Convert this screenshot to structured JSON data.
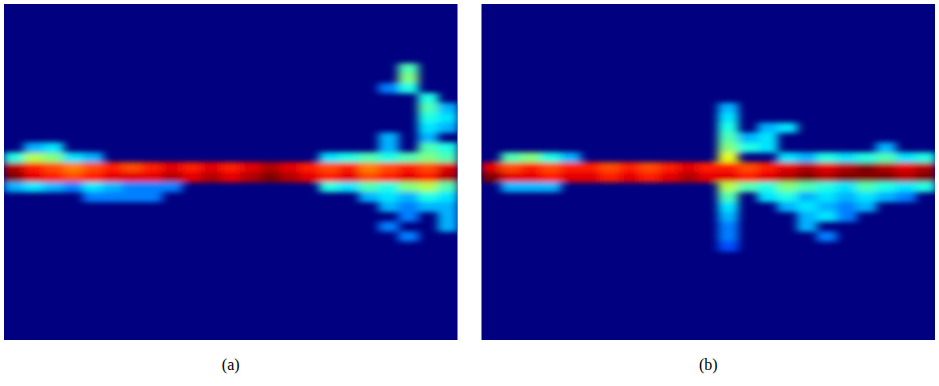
{
  "chart_data": [
    {
      "type": "heatmap",
      "title": "(a)",
      "rows": 34,
      "cols": 23,
      "color_range": [
        0,
        1
      ],
      "tick_labels": false,
      "cells": [
        [
          16,
          0,
          0.95
        ],
        [
          16,
          1,
          0.85
        ],
        [
          16,
          2,
          0.8
        ],
        [
          16,
          3,
          0.75
        ],
        [
          16,
          4,
          0.8
        ],
        [
          16,
          5,
          0.85
        ],
        [
          16,
          6,
          0.8
        ],
        [
          16,
          7,
          0.85
        ],
        [
          16,
          8,
          0.9
        ],
        [
          16,
          9,
          0.85
        ],
        [
          16,
          10,
          0.9
        ],
        [
          16,
          11,
          0.85
        ],
        [
          16,
          12,
          0.9
        ],
        [
          16,
          13,
          0.95
        ],
        [
          16,
          14,
          0.9
        ],
        [
          16,
          15,
          0.85
        ],
        [
          16,
          16,
          0.8
        ],
        [
          16,
          17,
          0.85
        ],
        [
          16,
          18,
          0.75
        ],
        [
          16,
          19,
          0.8
        ],
        [
          16,
          20,
          0.85
        ],
        [
          16,
          21,
          0.8
        ],
        [
          16,
          22,
          0.9
        ],
        [
          17,
          0,
          1.0
        ],
        [
          17,
          1,
          0.9
        ],
        [
          17,
          2,
          0.85
        ],
        [
          17,
          3,
          0.8
        ],
        [
          17,
          4,
          0.85
        ],
        [
          17,
          5,
          0.9
        ],
        [
          17,
          6,
          0.9
        ],
        [
          17,
          7,
          0.9
        ],
        [
          17,
          8,
          0.95
        ],
        [
          17,
          9,
          0.9
        ],
        [
          17,
          10,
          0.95
        ],
        [
          17,
          11,
          0.9
        ],
        [
          17,
          12,
          0.95
        ],
        [
          17,
          13,
          1.0
        ],
        [
          17,
          14,
          0.95
        ],
        [
          17,
          15,
          0.9
        ],
        [
          17,
          16,
          0.85
        ],
        [
          17,
          17,
          0.9
        ],
        [
          17,
          18,
          0.8
        ],
        [
          17,
          19,
          0.85
        ],
        [
          17,
          20,
          0.9
        ],
        [
          17,
          21,
          0.85
        ],
        [
          17,
          22,
          0.95
        ],
        [
          15,
          0,
          0.4
        ],
        [
          15,
          1,
          0.55
        ],
        [
          15,
          2,
          0.5
        ],
        [
          15,
          3,
          0.35
        ],
        [
          15,
          4,
          0.3
        ],
        [
          15,
          16,
          0.35
        ],
        [
          15,
          17,
          0.4
        ],
        [
          15,
          18,
          0.45
        ],
        [
          15,
          19,
          0.4
        ],
        [
          15,
          20,
          0.45
        ],
        [
          15,
          21,
          0.5
        ],
        [
          15,
          22,
          0.45
        ],
        [
          14,
          1,
          0.3
        ],
        [
          14,
          2,
          0.35
        ],
        [
          14,
          21,
          0.45
        ],
        [
          14,
          22,
          0.4
        ],
        [
          18,
          0,
          0.3
        ],
        [
          18,
          1,
          0.35
        ],
        [
          18,
          2,
          0.3
        ],
        [
          18,
          3,
          0.25
        ],
        [
          18,
          4,
          0.35
        ],
        [
          18,
          5,
          0.3
        ],
        [
          18,
          6,
          0.25
        ],
        [
          18,
          7,
          0.25
        ],
        [
          18,
          8,
          0.25
        ],
        [
          18,
          16,
          0.4
        ],
        [
          18,
          17,
          0.35
        ],
        [
          18,
          18,
          0.45
        ],
        [
          18,
          19,
          0.4
        ],
        [
          18,
          20,
          0.5
        ],
        [
          18,
          21,
          0.55
        ],
        [
          18,
          22,
          0.45
        ],
        [
          19,
          4,
          0.25
        ],
        [
          19,
          5,
          0.25
        ],
        [
          19,
          6,
          0.25
        ],
        [
          19,
          7,
          0.25
        ],
        [
          19,
          18,
          0.3
        ],
        [
          19,
          19,
          0.35
        ],
        [
          19,
          20,
          0.3
        ],
        [
          19,
          21,
          0.4
        ],
        [
          19,
          22,
          0.35
        ],
        [
          20,
          19,
          0.3
        ],
        [
          20,
          20,
          0.25
        ],
        [
          20,
          21,
          0.3
        ],
        [
          20,
          22,
          0.3
        ],
        [
          21,
          20,
          0.25
        ],
        [
          21,
          22,
          0.3
        ],
        [
          22,
          19,
          0.25
        ],
        [
          22,
          22,
          0.3
        ],
        [
          23,
          20,
          0.25
        ],
        [
          6,
          20,
          0.45
        ],
        [
          7,
          20,
          0.5
        ],
        [
          8,
          20,
          0.4
        ],
        [
          8,
          19,
          0.25
        ],
        [
          9,
          21,
          0.4
        ],
        [
          10,
          21,
          0.45
        ],
        [
          11,
          21,
          0.4
        ],
        [
          12,
          21,
          0.35
        ],
        [
          13,
          21,
          0.3
        ],
        [
          10,
          22,
          0.3
        ],
        [
          11,
          22,
          0.35
        ],
        [
          12,
          22,
          0.3
        ],
        [
          13,
          19,
          0.3
        ],
        [
          14,
          19,
          0.3
        ]
      ]
    },
    {
      "type": "heatmap",
      "title": "(b)",
      "rows": 34,
      "cols": 23,
      "color_range": [
        0,
        1
      ],
      "tick_labels": false,
      "cells": [
        [
          16,
          0,
          0.9
        ],
        [
          16,
          1,
          0.8
        ],
        [
          16,
          2,
          0.85
        ],
        [
          16,
          3,
          0.8
        ],
        [
          16,
          4,
          0.85
        ],
        [
          16,
          5,
          0.85
        ],
        [
          16,
          6,
          0.8
        ],
        [
          16,
          7,
          0.85
        ],
        [
          16,
          8,
          0.8
        ],
        [
          16,
          9,
          0.85
        ],
        [
          16,
          10,
          0.9
        ],
        [
          16,
          11,
          0.85
        ],
        [
          16,
          12,
          0.85
        ],
        [
          16,
          13,
          0.8
        ],
        [
          16,
          14,
          0.85
        ],
        [
          16,
          15,
          0.9
        ],
        [
          16,
          16,
          0.95
        ],
        [
          16,
          17,
          0.9
        ],
        [
          16,
          18,
          0.95
        ],
        [
          16,
          19,
          1.0
        ],
        [
          16,
          20,
          0.95
        ],
        [
          16,
          21,
          0.9
        ],
        [
          16,
          22,
          0.95
        ],
        [
          17,
          0,
          1.0
        ],
        [
          17,
          1,
          0.9
        ],
        [
          17,
          2,
          0.9
        ],
        [
          17,
          3,
          0.85
        ],
        [
          17,
          4,
          0.9
        ],
        [
          17,
          5,
          0.9
        ],
        [
          17,
          6,
          0.85
        ],
        [
          17,
          7,
          0.9
        ],
        [
          17,
          8,
          0.85
        ],
        [
          17,
          9,
          0.9
        ],
        [
          17,
          10,
          0.95
        ],
        [
          17,
          11,
          0.9
        ],
        [
          17,
          12,
          0.9
        ],
        [
          17,
          13,
          0.85
        ],
        [
          17,
          14,
          0.9
        ],
        [
          17,
          15,
          0.95
        ],
        [
          17,
          16,
          1.0
        ],
        [
          17,
          17,
          0.95
        ],
        [
          17,
          18,
          1.0
        ],
        [
          17,
          19,
          1.0
        ],
        [
          17,
          20,
          1.0
        ],
        [
          17,
          21,
          0.95
        ],
        [
          17,
          22,
          1.0
        ],
        [
          10,
          12,
          0.3
        ],
        [
          11,
          12,
          0.35
        ],
        [
          12,
          12,
          0.4
        ],
        [
          13,
          12,
          0.45
        ],
        [
          14,
          12,
          0.5
        ],
        [
          15,
          12,
          0.6
        ],
        [
          18,
          12,
          0.55
        ],
        [
          19,
          12,
          0.45
        ],
        [
          20,
          12,
          0.35
        ],
        [
          21,
          12,
          0.3
        ],
        [
          22,
          12,
          0.25
        ],
        [
          23,
          12,
          0.25
        ],
        [
          24,
          12,
          0.2
        ],
        [
          12,
          14,
          0.3
        ],
        [
          12,
          15,
          0.35
        ],
        [
          13,
          14,
          0.35
        ],
        [
          13,
          13,
          0.3
        ],
        [
          14,
          13,
          0.4
        ],
        [
          14,
          14,
          0.35
        ],
        [
          15,
          1,
          0.45
        ],
        [
          15,
          2,
          0.5
        ],
        [
          15,
          3,
          0.4
        ],
        [
          15,
          4,
          0.3
        ],
        [
          18,
          1,
          0.3
        ],
        [
          18,
          2,
          0.3
        ],
        [
          18,
          3,
          0.3
        ],
        [
          18,
          13,
          0.45
        ],
        [
          18,
          14,
          0.4
        ],
        [
          18,
          15,
          0.5
        ],
        [
          18,
          16,
          0.45
        ],
        [
          18,
          17,
          0.4
        ],
        [
          18,
          18,
          0.35
        ],
        [
          18,
          19,
          0.45
        ],
        [
          18,
          20,
          0.4
        ],
        [
          18,
          21,
          0.35
        ],
        [
          18,
          22,
          0.4
        ],
        [
          19,
          14,
          0.35
        ],
        [
          19,
          15,
          0.4
        ],
        [
          19,
          16,
          0.3
        ],
        [
          19,
          17,
          0.35
        ],
        [
          19,
          18,
          0.3
        ],
        [
          19,
          19,
          0.35
        ],
        [
          19,
          20,
          0.3
        ],
        [
          19,
          21,
          0.25
        ],
        [
          20,
          15,
          0.3
        ],
        [
          20,
          16,
          0.35
        ],
        [
          20,
          17,
          0.3
        ],
        [
          20,
          18,
          0.25
        ],
        [
          20,
          19,
          0.3
        ],
        [
          21,
          16,
          0.3
        ],
        [
          21,
          17,
          0.35
        ],
        [
          21,
          18,
          0.25
        ],
        [
          22,
          16,
          0.3
        ],
        [
          23,
          17,
          0.25
        ],
        [
          15,
          15,
          0.35
        ],
        [
          15,
          16,
          0.3
        ],
        [
          15,
          17,
          0.4
        ],
        [
          15,
          18,
          0.35
        ],
        [
          15,
          19,
          0.4
        ],
        [
          15,
          20,
          0.45
        ],
        [
          15,
          21,
          0.35
        ],
        [
          15,
          22,
          0.4
        ],
        [
          14,
          20,
          0.3
        ]
      ]
    }
  ]
}
